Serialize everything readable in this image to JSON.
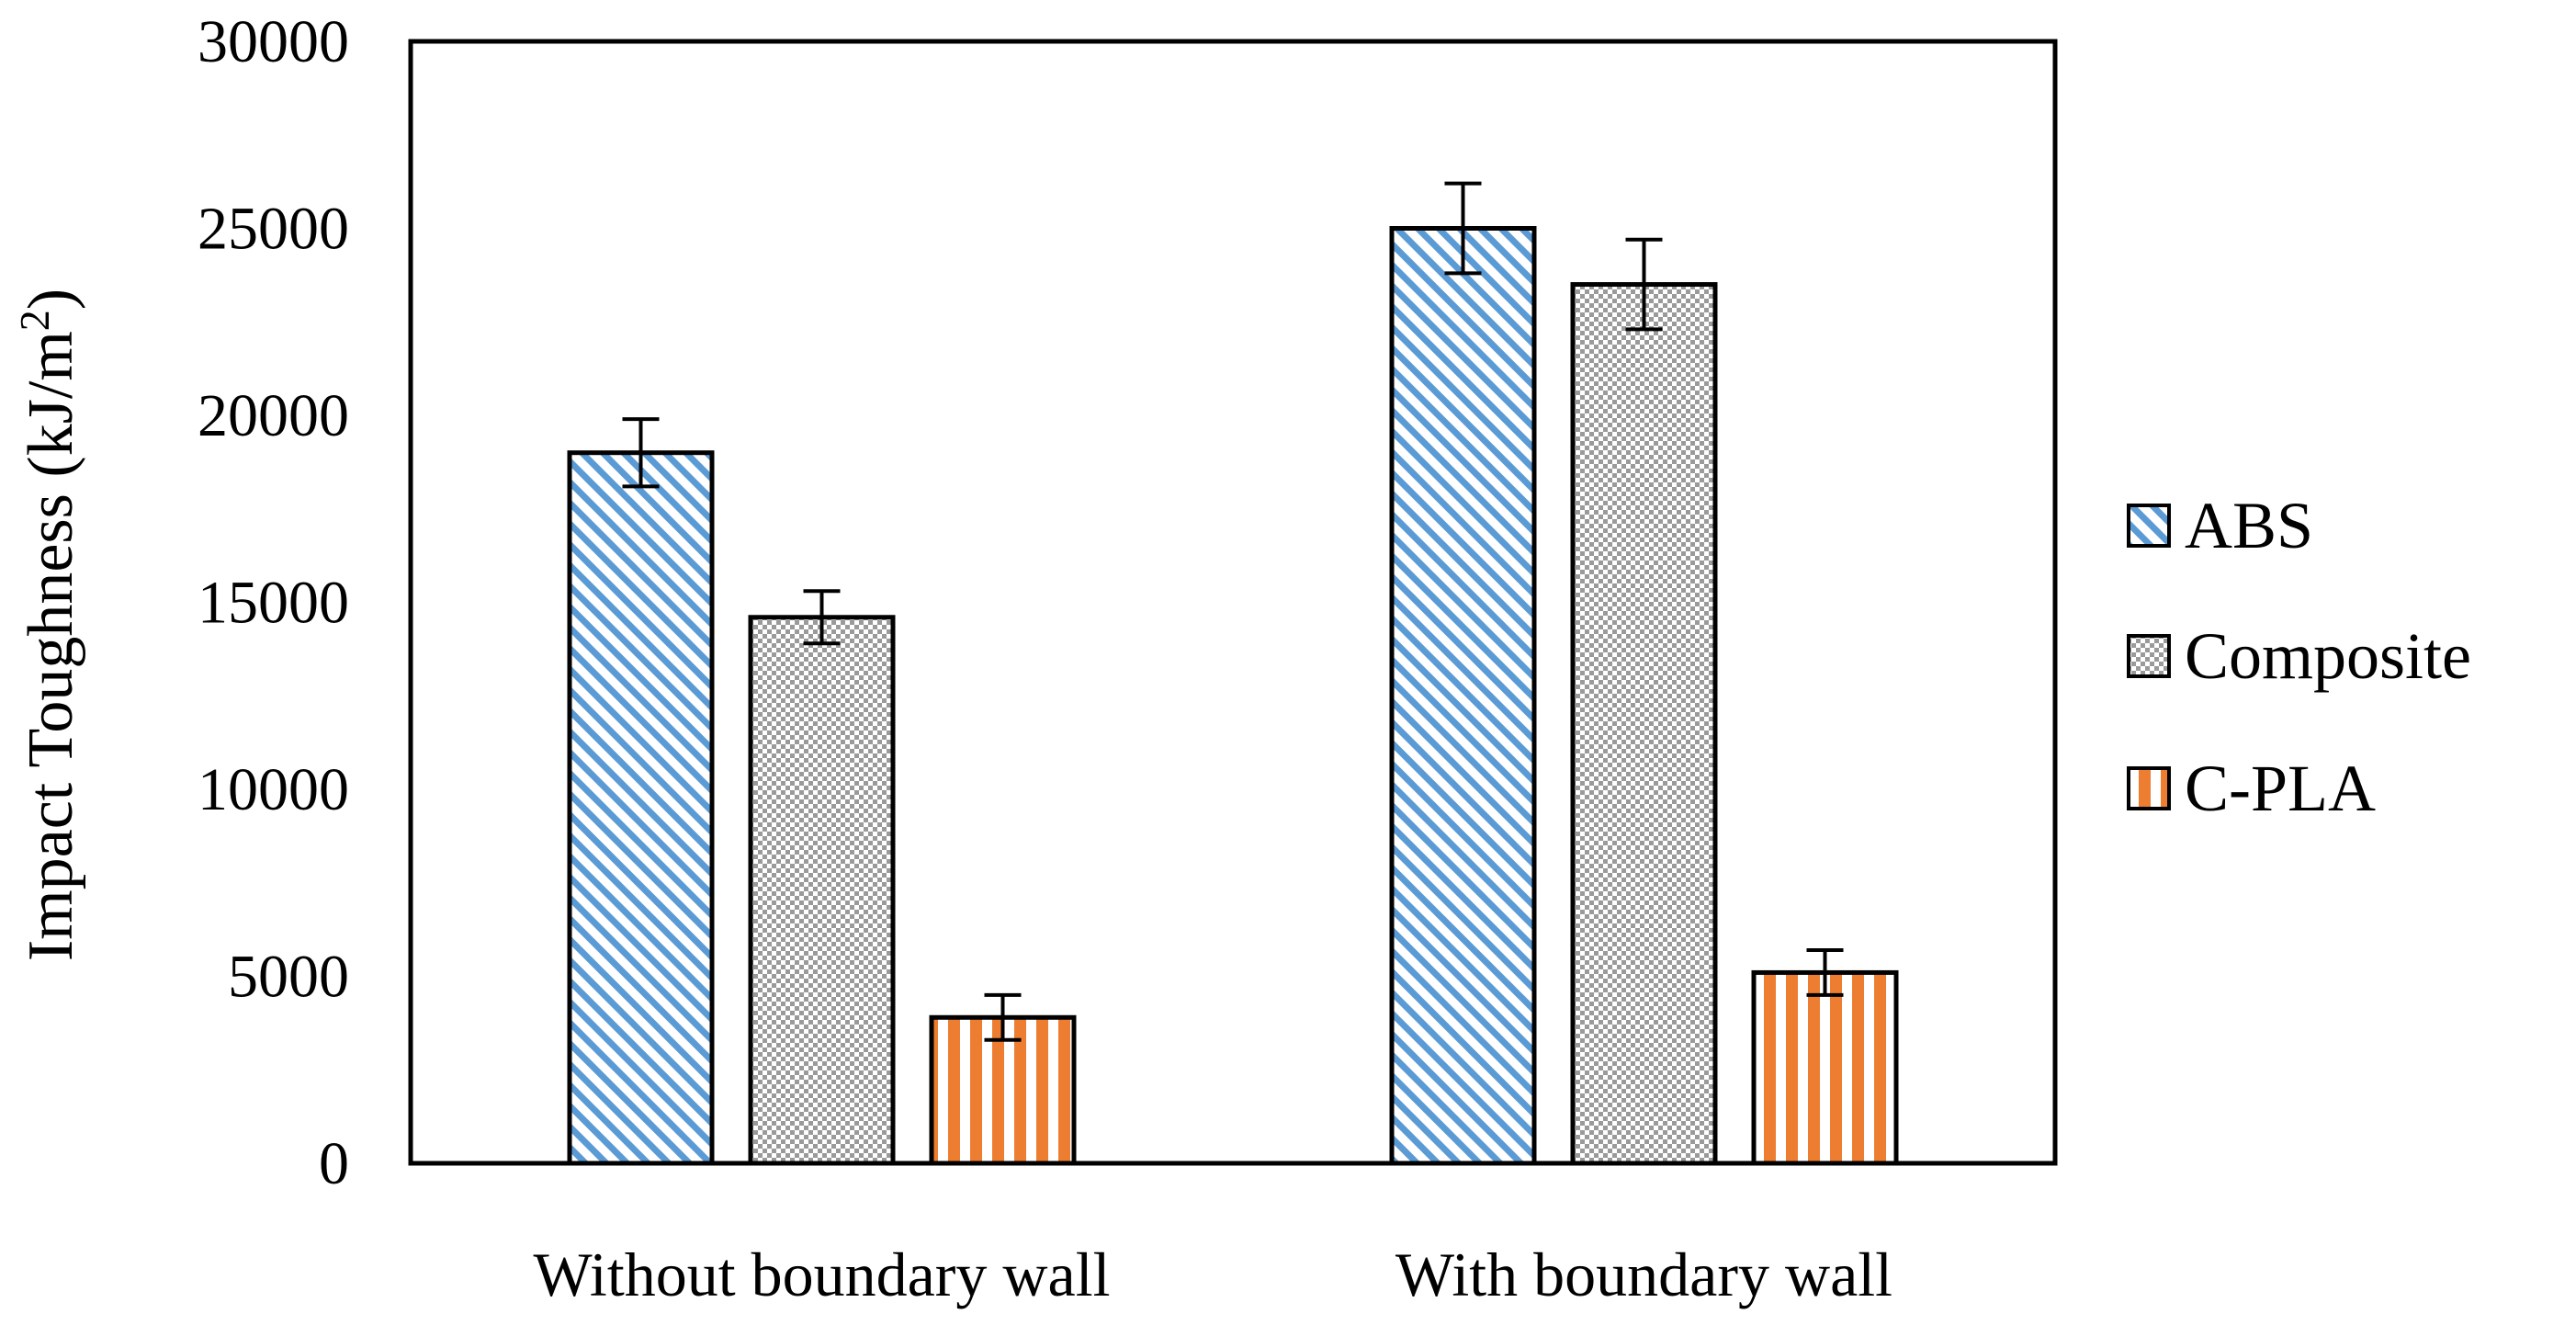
{
  "chart_data": {
    "type": "bar",
    "title": "",
    "xlabel": "",
    "ylabel": "Impact Toughness (kJ/m",
    "ylabel_sup": "2",
    "ylabel_close": ")",
    "ylim": [
      0,
      30000
    ],
    "yticks": [
      0,
      5000,
      10000,
      15000,
      20000,
      25000,
      30000
    ],
    "ytick_labels": [
      "0",
      "5000",
      "10000",
      "15000",
      "20000",
      "25000",
      "30000"
    ],
    "grid": false,
    "legend_position": "right",
    "categories": [
      "Without boundary wall",
      "With boundary wall"
    ],
    "series": [
      {
        "name": "ABS",
        "values": [
          19000,
          25000
        ],
        "errors": [
          900,
          1200
        ],
        "color": "#5b9bd5",
        "pattern": "diagonal"
      },
      {
        "name": "Composite",
        "values": [
          14600,
          23500
        ],
        "errors": [
          700,
          1200
        ],
        "color": "#a5a5a5",
        "pattern": "checker"
      },
      {
        "name": "C-PLA",
        "values": [
          3900,
          5100
        ],
        "errors": [
          600,
          600
        ],
        "color": "#ed7d31",
        "pattern": "vertical"
      }
    ]
  }
}
